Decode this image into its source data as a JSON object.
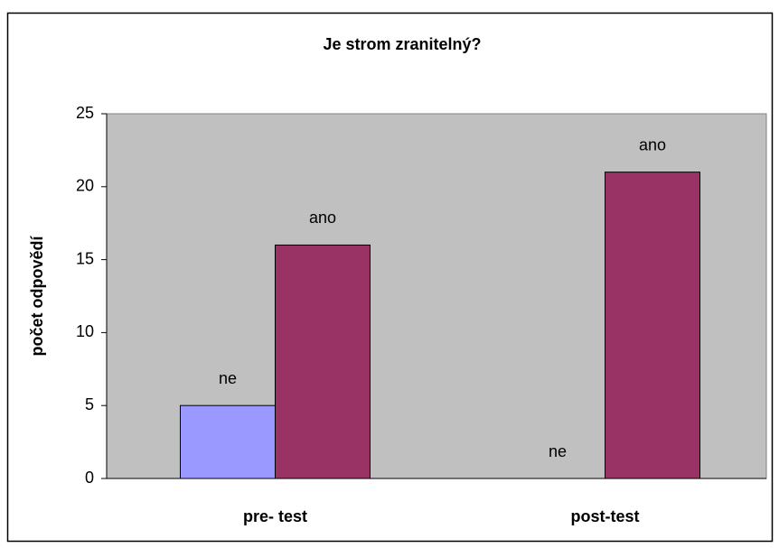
{
  "chart_data": {
    "type": "bar",
    "title": "Je strom zranitelný?",
    "y_label": "počet odpovědí",
    "categories": [
      "pre- test",
      "post-test"
    ],
    "series": [
      {
        "name": "ne",
        "color": "#9999ff",
        "values": [
          5,
          0
        ]
      },
      {
        "name": "ano",
        "color": "#993366",
        "values": [
          16,
          21
        ]
      }
    ],
    "ylim": [
      0,
      25
    ],
    "yticks": [
      0,
      5,
      10,
      15,
      20,
      25
    ],
    "plot_background": "#c0c0c0"
  }
}
